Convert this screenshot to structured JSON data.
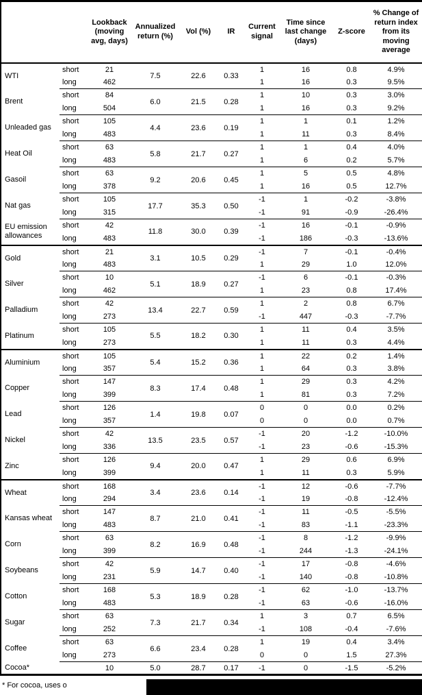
{
  "table": {
    "headers": [
      "Lookback\n(moving\navg, days)",
      "Annualized\nreturn (%)",
      "Vol (%)",
      "IR",
      "Current\nsignal",
      "Time since\nlast change\n(days)",
      "Z-score",
      "% Change of\nreturn index\nfrom its\nmoving\naverage"
    ],
    "commodities": [
      {
        "name": "WTI",
        "section_break": false,
        "annualized_return": "7.5",
        "vol": "22.6",
        "ir": "0.33",
        "legs": [
          {
            "position": "short",
            "lookback": "21",
            "signal": "1",
            "days_since_change": "16",
            "z_score": "0.8",
            "pct_change": "4.9%"
          },
          {
            "position": "long",
            "lookback": "462",
            "signal": "1",
            "days_since_change": "16",
            "z_score": "0.3",
            "pct_change": "9.5%"
          }
        ]
      },
      {
        "name": "Brent",
        "section_break": false,
        "annualized_return": "6.0",
        "vol": "21.5",
        "ir": "0.28",
        "legs": [
          {
            "position": "short",
            "lookback": "84",
            "signal": "1",
            "days_since_change": "10",
            "z_score": "0.3",
            "pct_change": "3.0%"
          },
          {
            "position": "long",
            "lookback": "504",
            "signal": "1",
            "days_since_change": "16",
            "z_score": "0.3",
            "pct_change": "9.2%"
          }
        ]
      },
      {
        "name": "Unleaded gas",
        "section_break": false,
        "annualized_return": "4.4",
        "vol": "23.6",
        "ir": "0.19",
        "legs": [
          {
            "position": "short",
            "lookback": "105",
            "signal": "1",
            "days_since_change": "1",
            "z_score": "0.1",
            "pct_change": "1.2%"
          },
          {
            "position": "long",
            "lookback": "483",
            "signal": "1",
            "days_since_change": "11",
            "z_score": "0.3",
            "pct_change": "8.4%"
          }
        ]
      },
      {
        "name": "Heat Oil",
        "section_break": false,
        "annualized_return": "5.8",
        "vol": "21.7",
        "ir": "0.27",
        "legs": [
          {
            "position": "short",
            "lookback": "63",
            "signal": "1",
            "days_since_change": "1",
            "z_score": "0.4",
            "pct_change": "4.0%"
          },
          {
            "position": "long",
            "lookback": "483",
            "signal": "1",
            "days_since_change": "6",
            "z_score": "0.2",
            "pct_change": "5.7%"
          }
        ]
      },
      {
        "name": "Gasoil",
        "section_break": false,
        "annualized_return": "9.2",
        "vol": "20.6",
        "ir": "0.45",
        "legs": [
          {
            "position": "short",
            "lookback": "63",
            "signal": "1",
            "days_since_change": "5",
            "z_score": "0.5",
            "pct_change": "4.8%"
          },
          {
            "position": "long",
            "lookback": "378",
            "signal": "1",
            "days_since_change": "16",
            "z_score": "0.5",
            "pct_change": "12.7%"
          }
        ]
      },
      {
        "name": "Nat gas",
        "section_break": false,
        "annualized_return": "17.7",
        "vol": "35.3",
        "ir": "0.50",
        "legs": [
          {
            "position": "short",
            "lookback": "105",
            "signal": "-1",
            "days_since_change": "1",
            "z_score": "-0.2",
            "pct_change": "-3.8%"
          },
          {
            "position": "long",
            "lookback": "315",
            "signal": "-1",
            "days_since_change": "91",
            "z_score": "-0.9",
            "pct_change": "-26.4%"
          }
        ]
      },
      {
        "name": "EU emission allowances",
        "section_break": false,
        "annualized_return": "11.8",
        "vol": "30.0",
        "ir": "0.39",
        "legs": [
          {
            "position": "short",
            "lookback": "42",
            "signal": "-1",
            "days_since_change": "16",
            "z_score": "-0.1",
            "pct_change": "-0.9%"
          },
          {
            "position": "long",
            "lookback": "483",
            "signal": "-1",
            "days_since_change": "186",
            "z_score": "-0.3",
            "pct_change": "-13.6%"
          }
        ]
      },
      {
        "name": "Gold",
        "section_break": true,
        "annualized_return": "3.1",
        "vol": "10.5",
        "ir": "0.29",
        "legs": [
          {
            "position": "short",
            "lookback": "21",
            "signal": "-1",
            "days_since_change": "7",
            "z_score": "-0.1",
            "pct_change": "-0.4%"
          },
          {
            "position": "long",
            "lookback": "483",
            "signal": "1",
            "days_since_change": "29",
            "z_score": "1.0",
            "pct_change": "12.0%"
          }
        ]
      },
      {
        "name": "Silver",
        "section_break": false,
        "annualized_return": "5.1",
        "vol": "18.9",
        "ir": "0.27",
        "legs": [
          {
            "position": "short",
            "lookback": "10",
            "signal": "-1",
            "days_since_change": "6",
            "z_score": "-0.1",
            "pct_change": "-0.3%"
          },
          {
            "position": "long",
            "lookback": "462",
            "signal": "1",
            "days_since_change": "23",
            "z_score": "0.8",
            "pct_change": "17.4%"
          }
        ]
      },
      {
        "name": "Palladium",
        "section_break": false,
        "annualized_return": "13.4",
        "vol": "22.7",
        "ir": "0.59",
        "legs": [
          {
            "position": "short",
            "lookback": "42",
            "signal": "1",
            "days_since_change": "2",
            "z_score": "0.8",
            "pct_change": "6.7%"
          },
          {
            "position": "long",
            "lookback": "273",
            "signal": "-1",
            "days_since_change": "447",
            "z_score": "-0.3",
            "pct_change": "-7.7%"
          }
        ]
      },
      {
        "name": "Platinum",
        "section_break": false,
        "annualized_return": "5.5",
        "vol": "18.2",
        "ir": "0.30",
        "legs": [
          {
            "position": "short",
            "lookback": "105",
            "signal": "1",
            "days_since_change": "11",
            "z_score": "0.4",
            "pct_change": "3.5%"
          },
          {
            "position": "long",
            "lookback": "273",
            "signal": "1",
            "days_since_change": "11",
            "z_score": "0.3",
            "pct_change": "4.4%"
          }
        ]
      },
      {
        "name": "Aluminium",
        "section_break": true,
        "annualized_return": "5.4",
        "vol": "15.2",
        "ir": "0.36",
        "legs": [
          {
            "position": "short",
            "lookback": "105",
            "signal": "1",
            "days_since_change": "22",
            "z_score": "0.2",
            "pct_change": "1.4%"
          },
          {
            "position": "long",
            "lookback": "357",
            "signal": "1",
            "days_since_change": "64",
            "z_score": "0.3",
            "pct_change": "3.8%"
          }
        ]
      },
      {
        "name": "Copper",
        "section_break": false,
        "annualized_return": "8.3",
        "vol": "17.4",
        "ir": "0.48",
        "legs": [
          {
            "position": "short",
            "lookback": "147",
            "signal": "1",
            "days_since_change": "29",
            "z_score": "0.3",
            "pct_change": "4.2%"
          },
          {
            "position": "long",
            "lookback": "399",
            "signal": "1",
            "days_since_change": "81",
            "z_score": "0.3",
            "pct_change": "7.2%"
          }
        ]
      },
      {
        "name": "Lead",
        "section_break": false,
        "annualized_return": "1.4",
        "vol": "19.8",
        "ir": "0.07",
        "legs": [
          {
            "position": "short",
            "lookback": "126",
            "signal": "0",
            "days_since_change": "0",
            "z_score": "0.0",
            "pct_change": "0.2%"
          },
          {
            "position": "long",
            "lookback": "357",
            "signal": "0",
            "days_since_change": "0",
            "z_score": "0.0",
            "pct_change": "0.7%"
          }
        ]
      },
      {
        "name": "Nickel",
        "section_break": false,
        "annualized_return": "13.5",
        "vol": "23.5",
        "ir": "0.57",
        "legs": [
          {
            "position": "short",
            "lookback": "42",
            "signal": "-1",
            "days_since_change": "20",
            "z_score": "-1.2",
            "pct_change": "-10.0%"
          },
          {
            "position": "long",
            "lookback": "336",
            "signal": "-1",
            "days_since_change": "23",
            "z_score": "-0.6",
            "pct_change": "-15.3%"
          }
        ]
      },
      {
        "name": "Zinc",
        "section_break": false,
        "annualized_return": "9.4",
        "vol": "20.0",
        "ir": "0.47",
        "legs": [
          {
            "position": "short",
            "lookback": "126",
            "signal": "1",
            "days_since_change": "29",
            "z_score": "0.6",
            "pct_change": "6.9%"
          },
          {
            "position": "long",
            "lookback": "399",
            "signal": "1",
            "days_since_change": "11",
            "z_score": "0.3",
            "pct_change": "5.9%"
          }
        ]
      },
      {
        "name": "Wheat",
        "section_break": true,
        "annualized_return": "3.4",
        "vol": "23.6",
        "ir": "0.14",
        "legs": [
          {
            "position": "short",
            "lookback": "168",
            "signal": "-1",
            "days_since_change": "12",
            "z_score": "-0.6",
            "pct_change": "-7.7%"
          },
          {
            "position": "long",
            "lookback": "294",
            "signal": "-1",
            "days_since_change": "19",
            "z_score": "-0.8",
            "pct_change": "-12.4%"
          }
        ]
      },
      {
        "name": "Kansas wheat",
        "section_break": false,
        "annualized_return": "8.7",
        "vol": "21.0",
        "ir": "0.41",
        "legs": [
          {
            "position": "short",
            "lookback": "147",
            "signal": "-1",
            "days_since_change": "11",
            "z_score": "-0.5",
            "pct_change": "-5.5%"
          },
          {
            "position": "long",
            "lookback": "483",
            "signal": "-1",
            "days_since_change": "83",
            "z_score": "-1.1",
            "pct_change": "-23.3%"
          }
        ]
      },
      {
        "name": "Corn",
        "section_break": false,
        "annualized_return": "8.2",
        "vol": "16.9",
        "ir": "0.48",
        "legs": [
          {
            "position": "short",
            "lookback": "63",
            "signal": "-1",
            "days_since_change": "8",
            "z_score": "-1.2",
            "pct_change": "-9.9%"
          },
          {
            "position": "long",
            "lookback": "399",
            "signal": "-1",
            "days_since_change": "244",
            "z_score": "-1.3",
            "pct_change": "-24.1%"
          }
        ]
      },
      {
        "name": "Soybeans",
        "section_break": false,
        "annualized_return": "5.9",
        "vol": "14.7",
        "ir": "0.40",
        "legs": [
          {
            "position": "short",
            "lookback": "42",
            "signal": "-1",
            "days_since_change": "17",
            "z_score": "-0.8",
            "pct_change": "-4.6%"
          },
          {
            "position": "long",
            "lookback": "231",
            "signal": "-1",
            "days_since_change": "140",
            "z_score": "-0.8",
            "pct_change": "-10.8%"
          }
        ]
      },
      {
        "name": "Cotton",
        "section_break": false,
        "annualized_return": "5.3",
        "vol": "18.9",
        "ir": "0.28",
        "legs": [
          {
            "position": "short",
            "lookback": "168",
            "signal": "-1",
            "days_since_change": "62",
            "z_score": "-1.0",
            "pct_change": "-13.7%"
          },
          {
            "position": "long",
            "lookback": "483",
            "signal": "-1",
            "days_since_change": "63",
            "z_score": "-0.6",
            "pct_change": "-16.0%"
          }
        ]
      },
      {
        "name": "Sugar",
        "section_break": false,
        "annualized_return": "7.3",
        "vol": "21.7",
        "ir": "0.34",
        "legs": [
          {
            "position": "short",
            "lookback": "63",
            "signal": "1",
            "days_since_change": "3",
            "z_score": "0.7",
            "pct_change": "6.5%"
          },
          {
            "position": "long",
            "lookback": "252",
            "signal": "-1",
            "days_since_change": "108",
            "z_score": "-0.4",
            "pct_change": "-7.6%"
          }
        ]
      },
      {
        "name": "Coffee",
        "section_break": false,
        "annualized_return": "6.6",
        "vol": "23.4",
        "ir": "0.28",
        "legs": [
          {
            "position": "short",
            "lookback": "63",
            "signal": "1",
            "days_since_change": "19",
            "z_score": "0.4",
            "pct_change": "3.4%"
          },
          {
            "position": "long",
            "lookback": "273",
            "signal": "0",
            "days_since_change": "0",
            "z_score": "1.5",
            "pct_change": "27.3%"
          }
        ]
      },
      {
        "name": "Cocoa*",
        "section_break": false,
        "annualized_return": "5.0",
        "vol": "28.7",
        "ir": "0.17",
        "legs": [
          {
            "position": "",
            "lookback": "10",
            "signal": "-1",
            "days_since_change": "0",
            "z_score": "-1.5",
            "pct_change": "-5.2%"
          }
        ]
      }
    ]
  },
  "footnote": "* For cocoa, uses o"
}
